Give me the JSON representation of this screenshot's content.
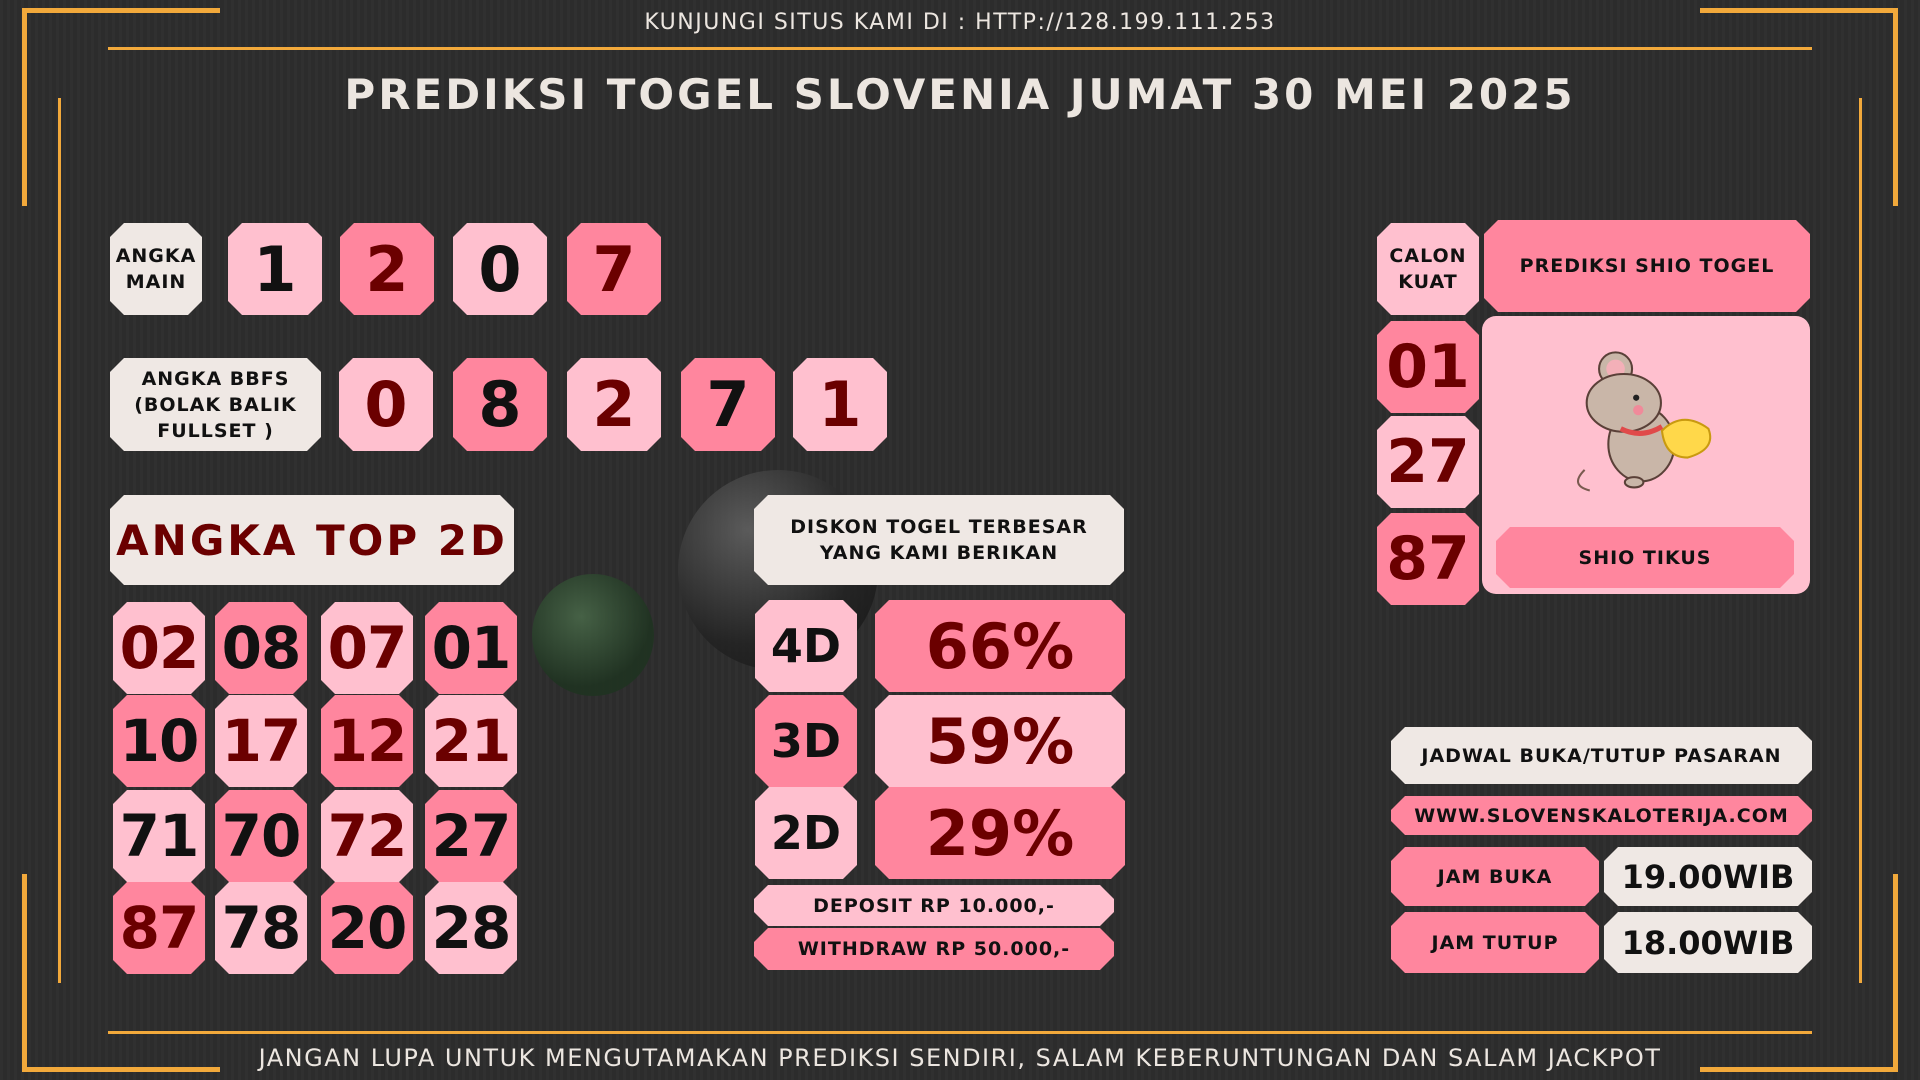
{
  "header": {
    "visit": "KUNJUNGI SITUS KAMI DI : HTTP://128.199.111.253",
    "title": "PREDIKSI TOGEL SLOVENIA JUMAT 30 MEI 2025"
  },
  "colors": {
    "light_pink": "#ffc0cf",
    "hot_pink": "#ff869e",
    "cream": "#efe8e4",
    "dark_red": "#6b0000",
    "gold": "#f2a93b",
    "background": "#2d2d2d"
  },
  "angka_main": {
    "label": "ANGKA MAIN",
    "digits": [
      {
        "v": "1",
        "bg": "lp",
        "fg": "#111"
      },
      {
        "v": "2",
        "bg": "hp",
        "fg": "#6b0000"
      },
      {
        "v": "0",
        "bg": "lp",
        "fg": "#111"
      },
      {
        "v": "7",
        "bg": "hp",
        "fg": "#6b0000"
      }
    ]
  },
  "bbfs": {
    "label": "ANGKA BBFS (BOLAK BALIK FULLSET )",
    "digits": [
      {
        "v": "0",
        "bg": "lp",
        "fg": "#6b0000"
      },
      {
        "v": "8",
        "bg": "hp",
        "fg": "#111"
      },
      {
        "v": "2",
        "bg": "lp",
        "fg": "#6b0000"
      },
      {
        "v": "7",
        "bg": "hp",
        "fg": "#111"
      },
      {
        "v": "1",
        "bg": "lp",
        "fg": "#6b0000"
      }
    ]
  },
  "top2d": {
    "label": "ANGKA TOP 2D",
    "rows": [
      [
        {
          "v": "02",
          "bg": "lp",
          "fg": "#6b0000"
        },
        {
          "v": "08",
          "bg": "hp",
          "fg": "#111"
        },
        {
          "v": "07",
          "bg": "lp",
          "fg": "#6b0000"
        },
        {
          "v": "01",
          "bg": "hp",
          "fg": "#111"
        }
      ],
      [
        {
          "v": "10",
          "bg": "hp",
          "fg": "#111"
        },
        {
          "v": "17",
          "bg": "lp",
          "fg": "#6b0000"
        },
        {
          "v": "12",
          "bg": "hp",
          "fg": "#6b0000"
        },
        {
          "v": "21",
          "bg": "lp",
          "fg": "#6b0000"
        }
      ],
      [
        {
          "v": "71",
          "bg": "lp",
          "fg": "#111"
        },
        {
          "v": "70",
          "bg": "hp",
          "fg": "#111"
        },
        {
          "v": "72",
          "bg": "lp",
          "fg": "#6b0000"
        },
        {
          "v": "27",
          "bg": "hp",
          "fg": "#111"
        }
      ],
      [
        {
          "v": "87",
          "bg": "hp",
          "fg": "#6b0000"
        },
        {
          "v": "78",
          "bg": "lp",
          "fg": "#111"
        },
        {
          "v": "20",
          "bg": "hp",
          "fg": "#111"
        },
        {
          "v": "28",
          "bg": "lp",
          "fg": "#111"
        }
      ]
    ]
  },
  "diskon": {
    "label": "DISKON TOGEL TERBESAR YANG KAMI BERIKAN",
    "rows": [
      {
        "type": "4D",
        "value": "66%"
      },
      {
        "type": "3D",
        "value": "59%"
      },
      {
        "type": "2D",
        "value": "29%"
      }
    ],
    "deposit": "DEPOSIT RP 10.000,-",
    "withdraw": "WITHDRAW RP 50.000,-"
  },
  "calon_kuat": {
    "label": "CALON KUAT",
    "numbers": [
      "01",
      "27",
      "87"
    ]
  },
  "shio": {
    "title": "PREDIKSI SHIO TOGEL",
    "name": "SHIO TIKUS",
    "icon": "rat-icon"
  },
  "jadwal": {
    "label": "JADWAL BUKA/TUTUP PASARAN",
    "site": "WWW.SLOVENSKALOTERIJA.COM",
    "buka_label": "JAM BUKA",
    "buka": "19.00WIB",
    "tutup_label": "JAM TUTUP",
    "tutup": "18.00WIB"
  },
  "footer": {
    "text": "JANGAN LUPA UNTUK MENGUTAMAKAN PREDIKSI SENDIRI, SALAM KEBERUNTUNGAN DAN SALAM JACKPOT"
  }
}
